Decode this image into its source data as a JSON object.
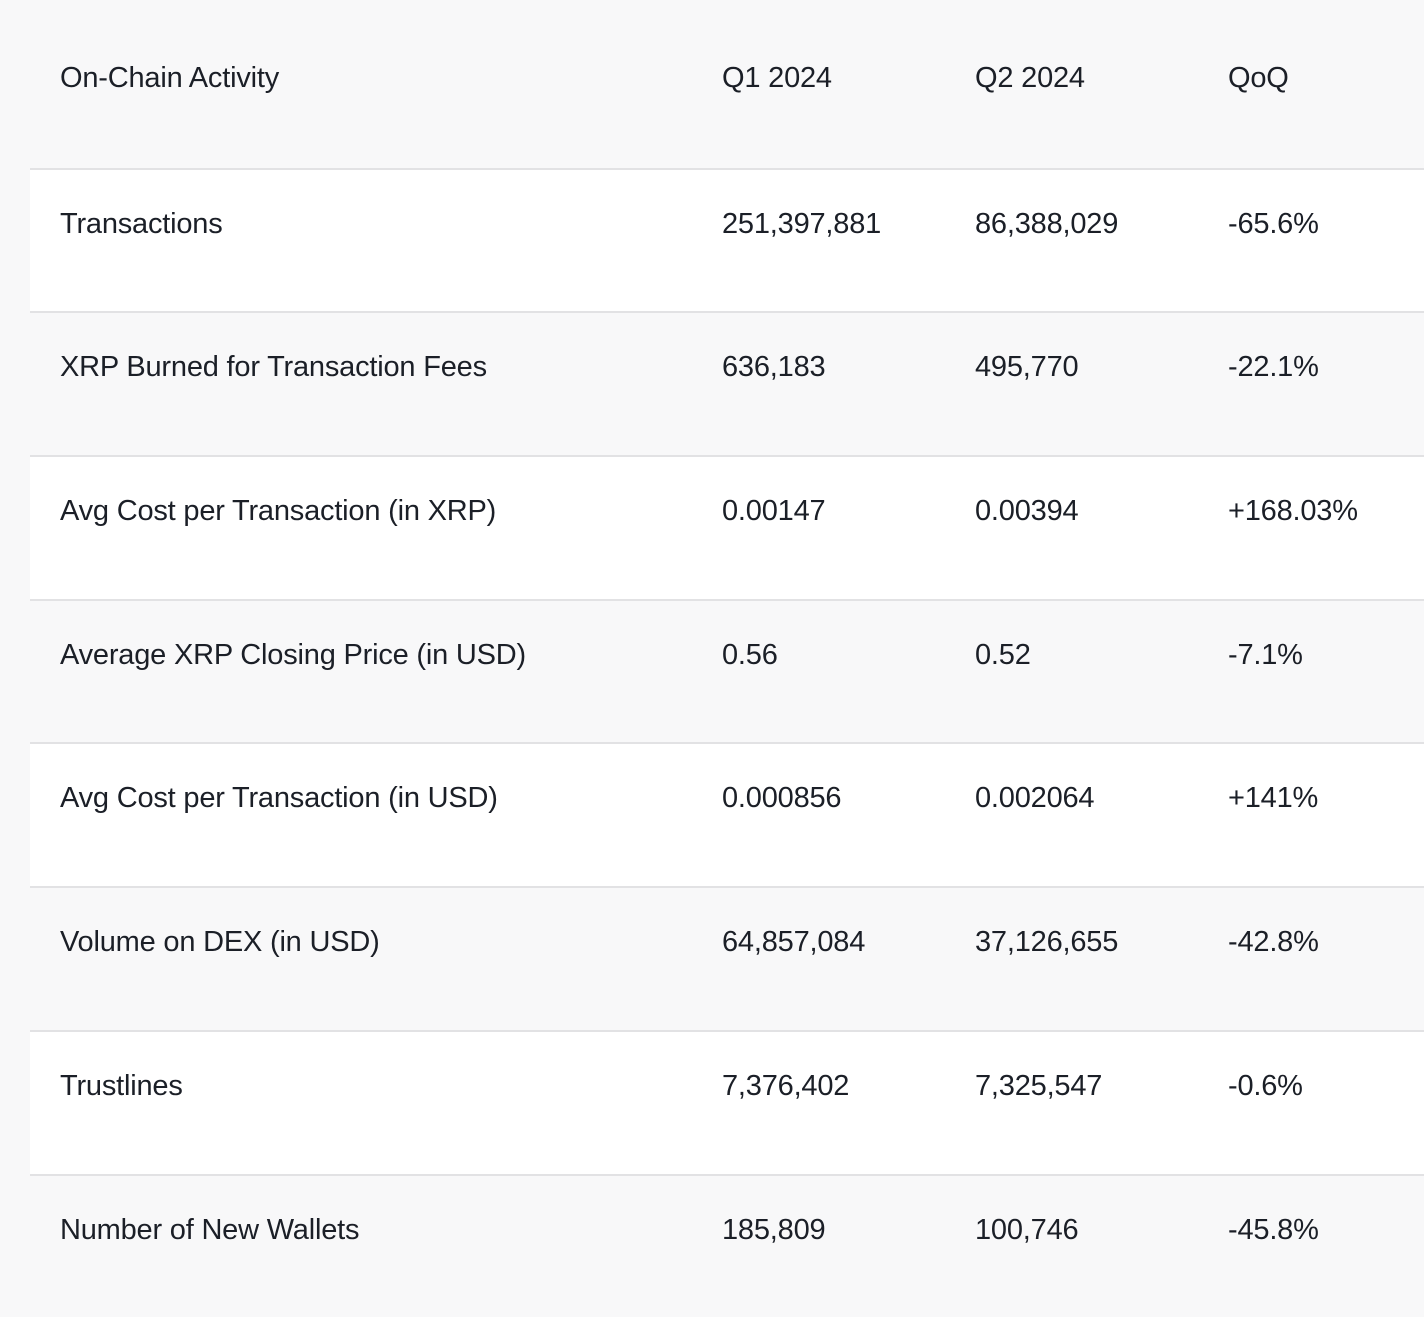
{
  "page": {
    "background": "#f8f8f9",
    "row_stripe_white": "#ffffff",
    "row_stripe_gray": "#f8f8f9",
    "divider_color": "#e2e2e4",
    "text_color": "#1b1f27"
  },
  "table": {
    "header": {
      "metric": "On-Chain Activity",
      "q1": "Q1 2024",
      "q2": "Q2 2024",
      "qoq": "QoQ"
    },
    "rows": [
      {
        "label": "Transactions",
        "q1": "251,397,881",
        "q2": "86,388,029",
        "qoq": "-65.6%"
      },
      {
        "label": "XRP Burned for Transaction Fees",
        "q1": "636,183",
        "q2": "495,770",
        "qoq": "-22.1%"
      },
      {
        "label": "Avg Cost per Transaction (in XRP)",
        "q1": "0.00147",
        "q2": "0.00394",
        "qoq": "+168.03%"
      },
      {
        "label": "Average XRP Closing Price (in USD)",
        "q1": "0.56",
        "q2": "0.52",
        "qoq": "-7.1%"
      },
      {
        "label": "Avg Cost per Transaction (in USD)",
        "q1": "0.000856",
        "q2": "0.002064",
        "qoq": "+141%"
      },
      {
        "label": "Volume on DEX (in USD)",
        "q1": "64,857,084",
        "q2": "37,126,655",
        "qoq": "-42.8%"
      },
      {
        "label": "Trustlines",
        "q1": "7,376,402",
        "q2": "7,325,547",
        "qoq": "-0.6%"
      },
      {
        "label": "Number of New Wallets",
        "q1": "185,809",
        "q2": "100,746",
        "qoq": "-45.8%"
      }
    ]
  },
  "chart_data": {
    "type": "table",
    "title": "On-Chain Activity",
    "columns": [
      "On-Chain Activity",
      "Q1 2024",
      "Q2 2024",
      "QoQ"
    ],
    "rows": [
      [
        "Transactions",
        "251,397,881",
        "86,388,029",
        "-65.6%"
      ],
      [
        "XRP Burned for Transaction Fees",
        "636,183",
        "495,770",
        "-22.1%"
      ],
      [
        "Avg Cost per Transaction (in XRP)",
        "0.00147",
        "0.00394",
        "+168.03%"
      ],
      [
        "Average XRP Closing Price (in USD)",
        "0.56",
        "0.52",
        "-7.1%"
      ],
      [
        "Avg Cost per Transaction (in USD)",
        "0.000856",
        "0.002064",
        "+141%"
      ],
      [
        "Volume on DEX (in USD)",
        "64,857,084",
        "37,126,655",
        "-42.8%"
      ],
      [
        "Trustlines",
        "7,376,402",
        "7,325,547",
        "-0.6%"
      ],
      [
        "Number of New Wallets",
        "185,809",
        "100,746",
        "-45.8%"
      ]
    ],
    "layout": {
      "striped_rows": true,
      "stripe_pattern": "header gray, then data rows alternate white/gray starting with white",
      "value_alignment": "left",
      "grid": "horizontal dividers only"
    }
  }
}
